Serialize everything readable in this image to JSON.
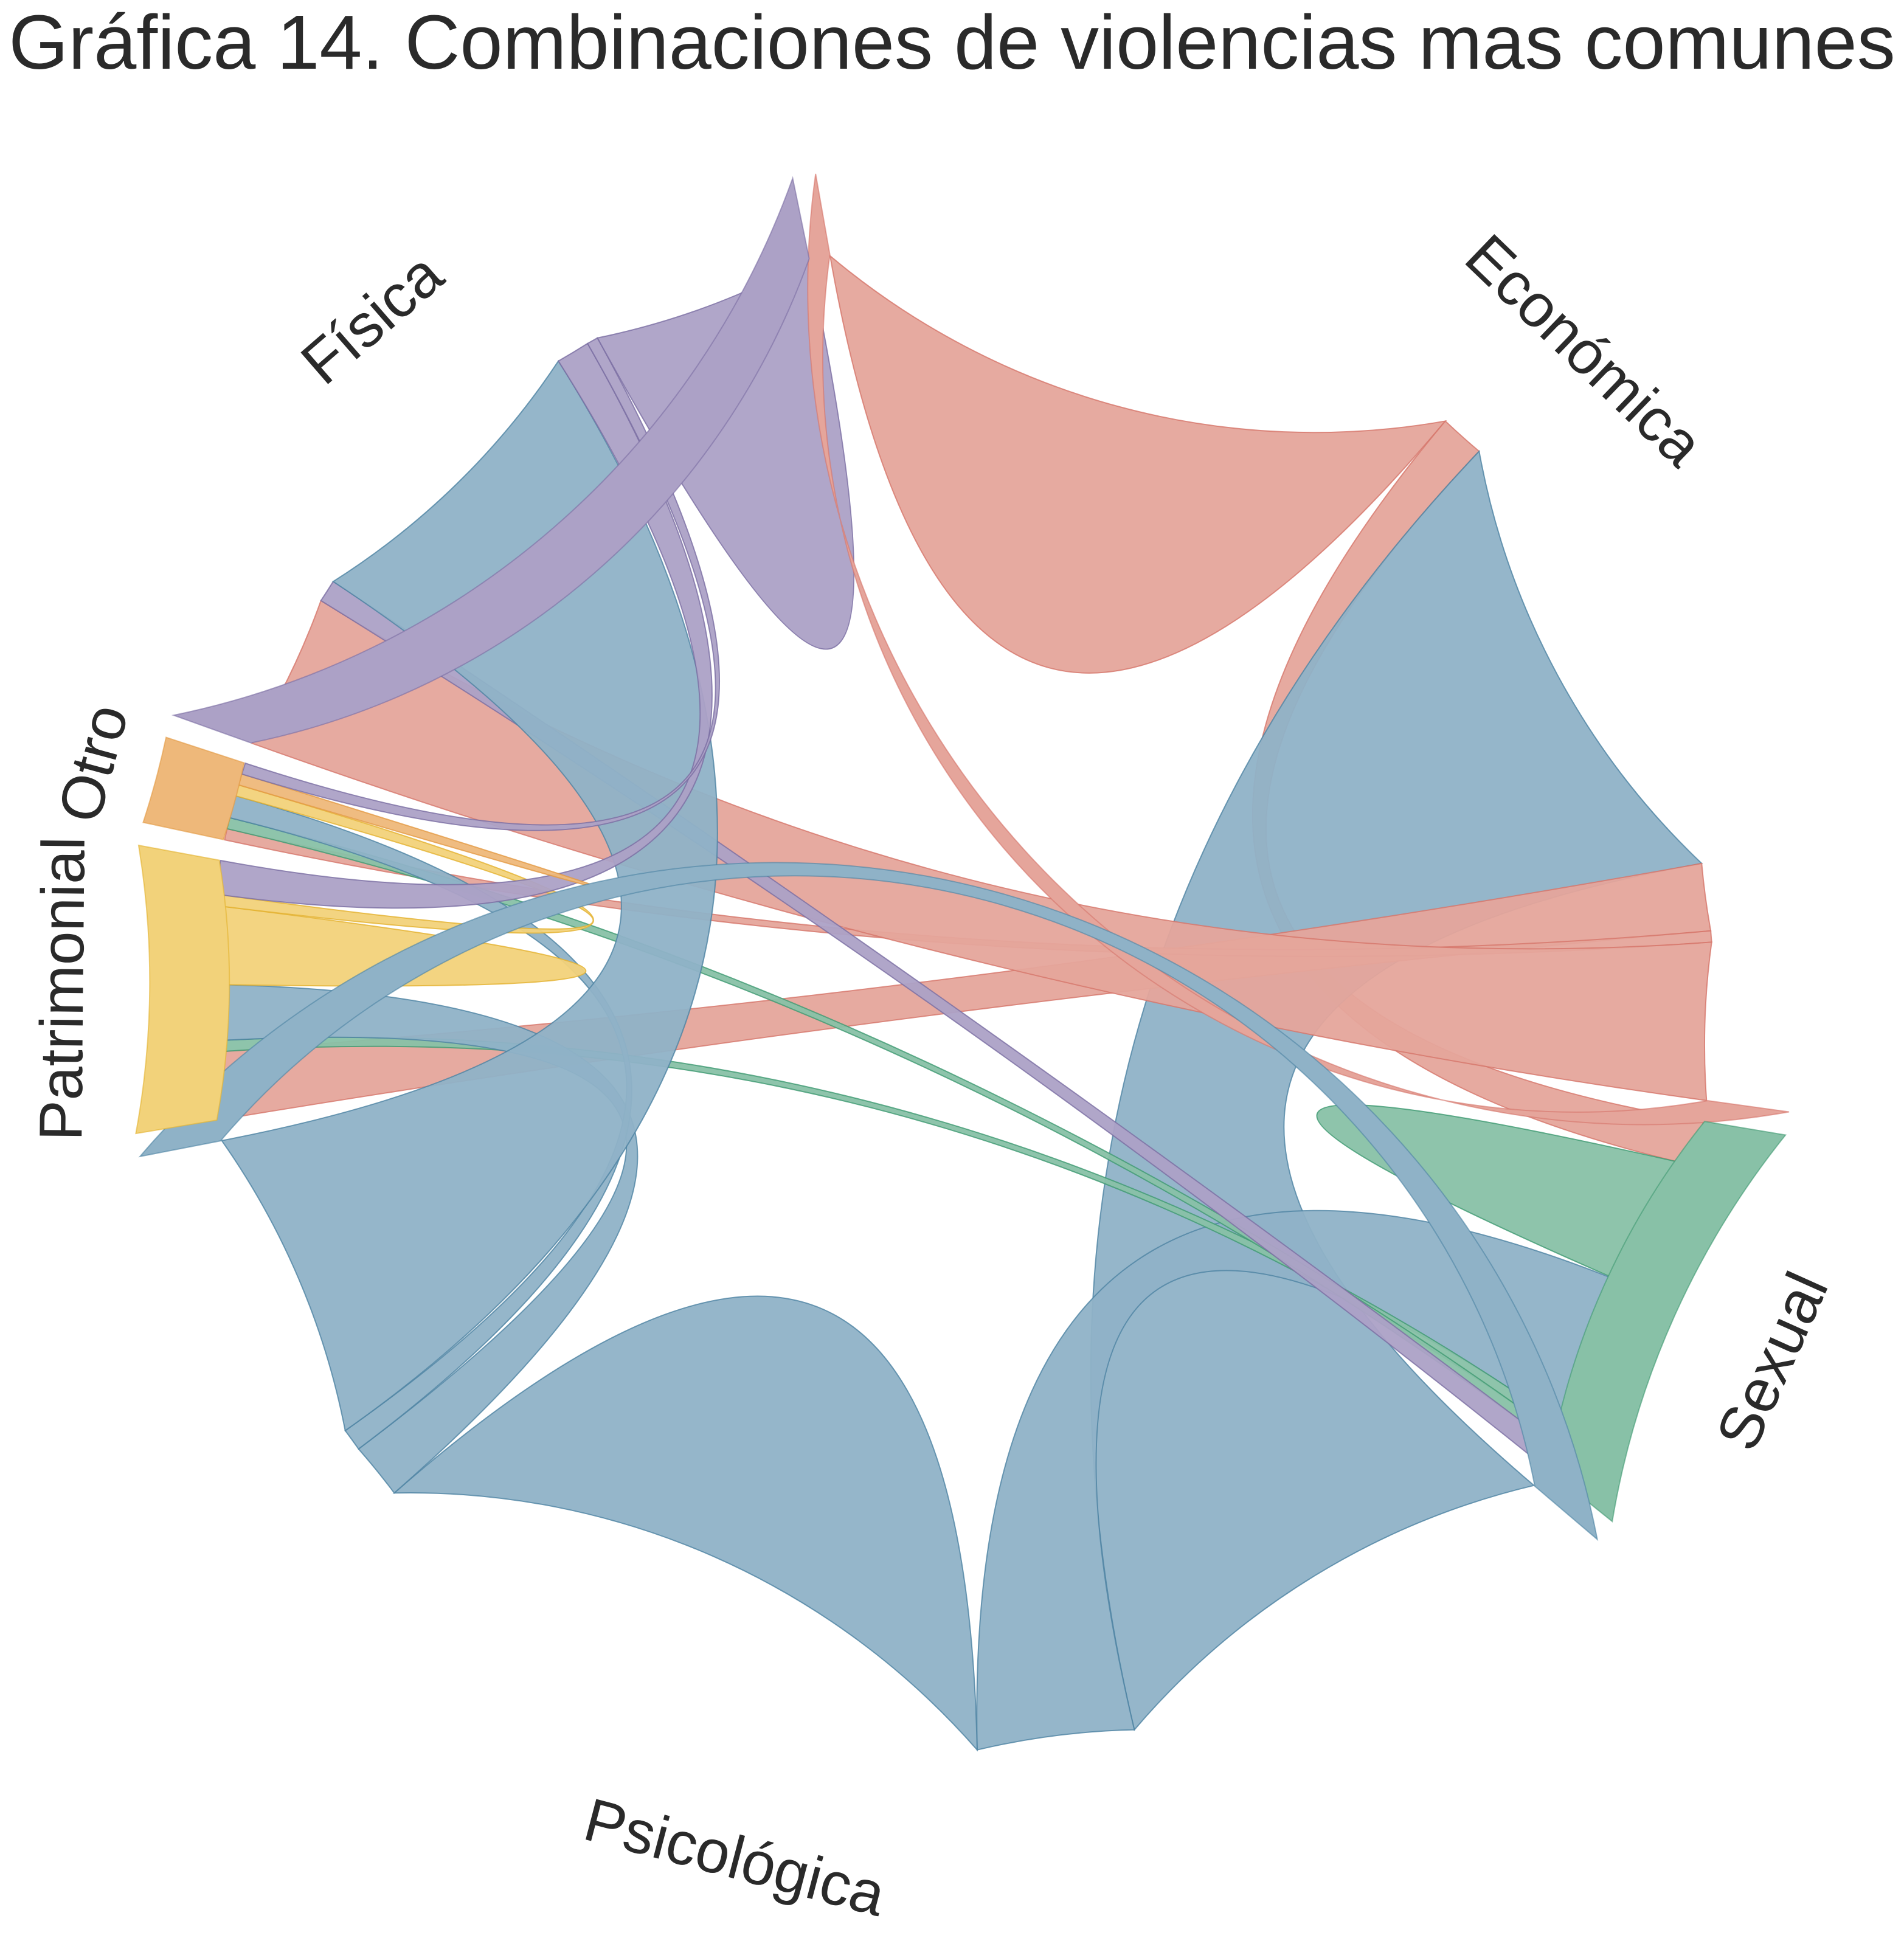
{
  "chart_data": {
    "type": "chord",
    "title": "Gráfica 14. Combinaciones de violencias mas comunes",
    "groups": [
      {
        "name": "Económica",
        "color": "#e5a59b",
        "stroke": "#d6756a"
      },
      {
        "name": "Sexual",
        "color": "#88c1a7",
        "stroke": "#3f9a72"
      },
      {
        "name": "Psicológica",
        "color": "#8fb2c7",
        "stroke": "#4d83a3"
      },
      {
        "name": "Patrimonial",
        "color": "#f2d27a",
        "stroke": "#e3b22f"
      },
      {
        "name": "Otro",
        "color": "#eeb87a",
        "stroke": "#e39a43"
      },
      {
        "name": "Física",
        "color": "#aca1c6",
        "stroke": "#7b6ea3"
      }
    ],
    "matrix": [
      [
        58,
        4,
        42,
        6,
        1,
        14
      ],
      [
        4,
        12,
        14,
        1,
        1,
        2
      ],
      [
        42,
        14,
        58,
        5,
        2,
        28
      ],
      [
        6,
        1,
        5,
        7,
        1,
        3
      ],
      [
        1,
        1,
        2,
        1,
        1,
        1
      ],
      [
        14,
        2,
        28,
        3,
        1,
        20
      ]
    ]
  }
}
